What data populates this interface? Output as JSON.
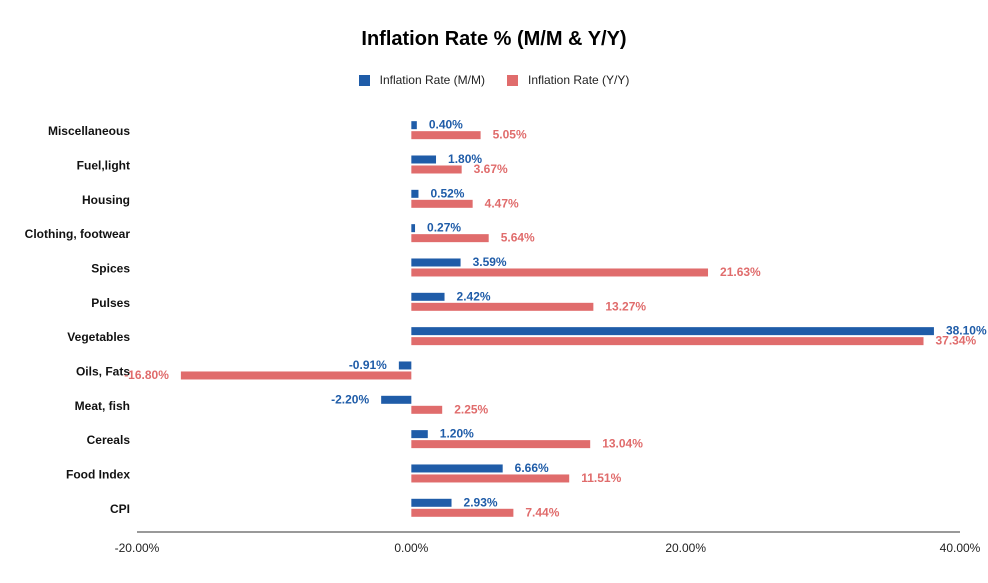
{
  "chart_data": {
    "type": "bar",
    "orientation": "horizontal",
    "title": "Inflation Rate % (M/M & Y/Y)",
    "categories": [
      "Miscellaneous",
      "Fuel,light",
      "Housing",
      "Clothing, footwear",
      "Spices",
      "Pulses",
      "Vegetables",
      "Oils, Fats",
      "Meat, fish",
      "Cereals",
      "Food Index",
      "CPI"
    ],
    "series": [
      {
        "name": "Inflation Rate (M/M)",
        "color": "#1f5ca8",
        "values": [
          0.4,
          1.8,
          0.52,
          0.27,
          3.59,
          2.42,
          38.1,
          -0.91,
          -2.2,
          1.2,
          6.66,
          2.93
        ],
        "labels": [
          "0.40%",
          "1.80%",
          "0.52%",
          "0.27%",
          "3.59%",
          "2.42%",
          "38.10%",
          "-0.91%",
          "-2.20%",
          "1.20%",
          "6.66%",
          "2.93%"
        ]
      },
      {
        "name": "Inflation Rate (Y/Y)",
        "color": "#e06c6c",
        "values": [
          5.05,
          3.67,
          4.47,
          5.64,
          21.63,
          13.27,
          37.34,
          -16.8,
          2.25,
          13.04,
          11.51,
          7.44
        ],
        "labels": [
          "5.05%",
          "3.67%",
          "4.47%",
          "5.64%",
          "21.63%",
          "13.27%",
          "37.34%",
          "-16.80%",
          "2.25%",
          "13.04%",
          "11.51%",
          "7.44%"
        ]
      }
    ],
    "xlim": [
      -20,
      40
    ],
    "xticks": [
      -20,
      0,
      20,
      40
    ],
    "xtick_labels": [
      "-20.00%",
      "0.00%",
      "20.00%",
      "40.00%"
    ],
    "legend_position": "top-center",
    "grid": false
  }
}
